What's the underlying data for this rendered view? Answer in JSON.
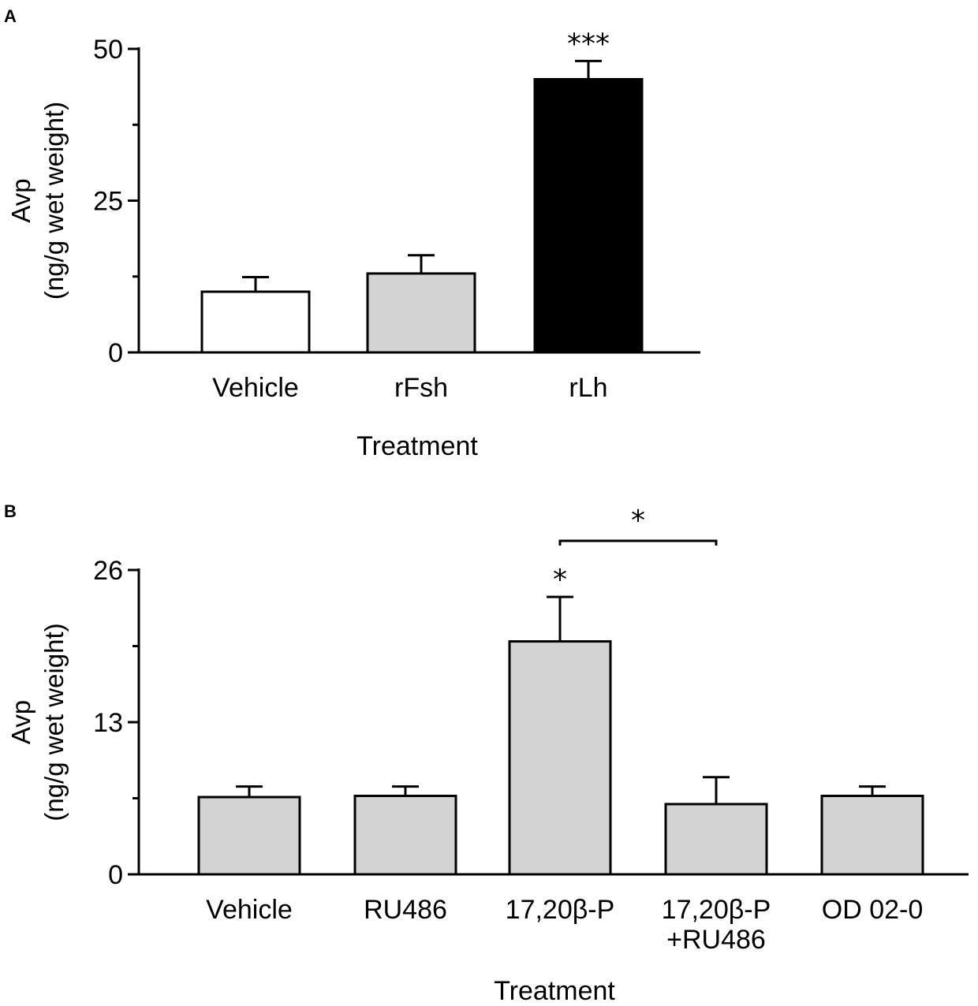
{
  "chart_data": [
    {
      "type": "bar",
      "panel": "A",
      "categories": [
        "Vehicle",
        "rFsh",
        "rLh"
      ],
      "values": [
        10,
        13,
        45
      ],
      "errors": [
        2.4,
        3,
        3
      ],
      "bar_colors": [
        "#ffffff",
        "#d3d3d3",
        "#000000"
      ],
      "significance": [
        "",
        "",
        "***"
      ],
      "xlabel": "Treatment",
      "ylabel_lines": [
        "Avp",
        "(ng/g wet weight)"
      ],
      "yticks": [
        0,
        25,
        50
      ],
      "yminor": [
        12.5,
        37.5
      ],
      "ylim": [
        0,
        50
      ]
    },
    {
      "type": "bar",
      "panel": "B",
      "categories": [
        {
          "lines": [
            "Vehicle"
          ]
        },
        {
          "lines": [
            "RU486"
          ]
        },
        {
          "lines": [
            "17,20β-P"
          ]
        },
        {
          "lines": [
            "17,20β-P",
            "+RU486"
          ]
        },
        {
          "lines": [
            "OD 02-0"
          ]
        }
      ],
      "values": [
        6.6,
        6.7,
        19.9,
        6,
        6.7
      ],
      "errors": [
        0.9,
        0.8,
        3.8,
        2.3,
        0.8
      ],
      "bar_colors": [
        "#d3d3d3",
        "#d3d3d3",
        "#d3d3d3",
        "#d3d3d3",
        "#d3d3d3"
      ],
      "significance": [
        "",
        "",
        "*",
        "",
        ""
      ],
      "bracket": {
        "from": 2,
        "to": 3,
        "label": "*"
      },
      "xlabel": "Treatment",
      "ylabel_lines": [
        "Avp",
        "(ng/g wet weight)"
      ],
      "yticks": [
        0,
        13,
        26
      ],
      "yminor": [
        6.5,
        19.5
      ],
      "ylim": [
        0,
        26
      ]
    }
  ]
}
